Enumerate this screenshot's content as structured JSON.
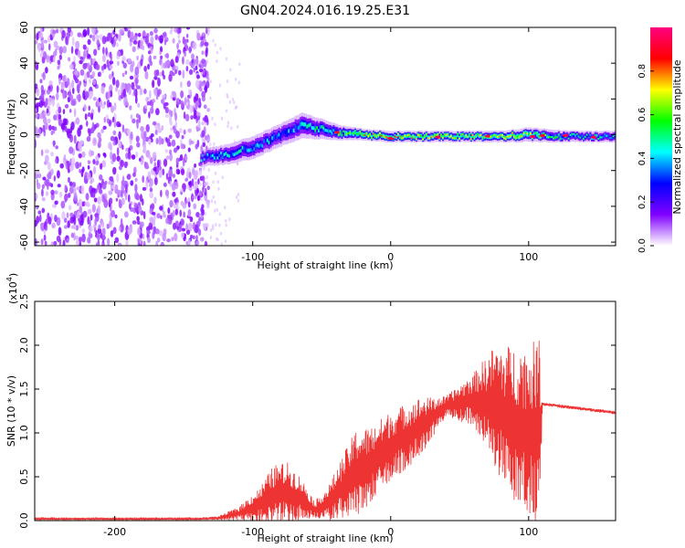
{
  "figure_title": "GN04.2024.016.19.25.E31",
  "chart_data": [
    {
      "type": "heatmap",
      "title": "GN04.2024.016.19.25.E31",
      "xlabel": "Height of straight line (km)",
      "ylabel": "Frequency (Hz)",
      "xlim": [
        -258,
        163
      ],
      "ylim": [
        -62,
        60
      ],
      "x_ticks": [
        -200,
        -100,
        0,
        100
      ],
      "x_tick_labels": [
        "-200",
        "-100",
        "0",
        "100"
      ],
      "y_ticks": [
        -60,
        -40,
        -20,
        0,
        20,
        40,
        60
      ],
      "y_tick_labels": [
        "-60",
        "-40",
        "-20",
        "0",
        "20",
        "40",
        "60"
      ],
      "colorbar": {
        "label": "Normalized spectral amplitude",
        "range": [
          0,
          1
        ],
        "ticks": [
          0,
          0.2,
          0.4,
          0.6,
          0.8
        ],
        "tick_labels": [
          "0.0",
          "0.2",
          "0.4",
          "0.6",
          "0.8"
        ],
        "colormap": [
          "#ffffff",
          "#8000ff",
          "#0000ff",
          "#00ffff",
          "#00ff00",
          "#ffff00",
          "#ff0000",
          "#ff0080"
        ]
      },
      "noise_region_x": [
        -258,
        -138
      ],
      "signal_track": [
        {
          "x": -138,
          "f_center": -13,
          "f_width": 6,
          "amp": 0.35
        },
        {
          "x": -120,
          "f_center": -11,
          "f_width": 7,
          "amp": 0.4
        },
        {
          "x": -100,
          "f_center": -7,
          "f_width": 8,
          "amp": 0.4
        },
        {
          "x": -80,
          "f_center": 0,
          "f_width": 8,
          "amp": 0.35
        },
        {
          "x": -65,
          "f_center": 5,
          "f_width": 9,
          "amp": 0.4
        },
        {
          "x": -50,
          "f_center": 3,
          "f_width": 7,
          "amp": 0.45
        },
        {
          "x": -35,
          "f_center": 1,
          "f_width": 5,
          "amp": 0.55
        },
        {
          "x": -20,
          "f_center": 0,
          "f_width": 4,
          "amp": 0.7
        },
        {
          "x": 0,
          "f_center": -1,
          "f_width": 4,
          "amp": 0.75
        },
        {
          "x": 20,
          "f_center": -1,
          "f_width": 4,
          "amp": 0.7
        },
        {
          "x": 50,
          "f_center": -1,
          "f_width": 4,
          "amp": 0.65
        },
        {
          "x": 80,
          "f_center": -1,
          "f_width": 4,
          "amp": 0.7
        },
        {
          "x": 100,
          "f_center": 0,
          "f_width": 5,
          "amp": 0.6
        },
        {
          "x": 130,
          "f_center": -1,
          "f_width": 4,
          "amp": 0.45
        },
        {
          "x": 163,
          "f_center": -1,
          "f_width": 4,
          "amp": 0.4
        }
      ]
    },
    {
      "type": "line",
      "xlabel": "Height of straight line (km)",
      "ylabel": "SNR (10 * v/v)",
      "y_multiplier_label": "(x10",
      "y_multiplier_exponent": "4",
      "y_multiplier_close": ")",
      "xlim": [
        -258,
        163
      ],
      "ylim": [
        0,
        2.5
      ],
      "x_ticks": [
        -200,
        -100,
        0,
        100
      ],
      "x_tick_labels": [
        "-200",
        "-100",
        "0",
        "100"
      ],
      "y_ticks": [
        0,
        0.5,
        1.0,
        1.5,
        2.0,
        2.5
      ],
      "y_tick_labels": [
        "0.0",
        "0.5",
        "1.0",
        "1.5",
        "2.0",
        "2.5"
      ],
      "grid": false,
      "series": [
        {
          "color": "#ee3333",
          "envelope": [
            {
              "x": -258,
              "base": 0.02,
              "amp": 0.01
            },
            {
              "x": -140,
              "base": 0.02,
              "amp": 0.01
            },
            {
              "x": -125,
              "base": 0.03,
              "amp": 0.02
            },
            {
              "x": -110,
              "base": 0.08,
              "amp": 0.08
            },
            {
              "x": -95,
              "base": 0.18,
              "amp": 0.2
            },
            {
              "x": -85,
              "base": 0.28,
              "amp": 0.35
            },
            {
              "x": -75,
              "base": 0.32,
              "amp": 0.35
            },
            {
              "x": -65,
              "base": 0.25,
              "amp": 0.25
            },
            {
              "x": -55,
              "base": 0.12,
              "amp": 0.1
            },
            {
              "x": -45,
              "base": 0.2,
              "amp": 0.2
            },
            {
              "x": -35,
              "base": 0.38,
              "amp": 0.35
            },
            {
              "x": -25,
              "base": 0.55,
              "amp": 0.5
            },
            {
              "x": -15,
              "base": 0.62,
              "amp": 0.45
            },
            {
              "x": 0,
              "base": 0.85,
              "amp": 0.4
            },
            {
              "x": 20,
              "base": 1.05,
              "amp": 0.35
            },
            {
              "x": 40,
              "base": 1.3,
              "amp": 0.12
            },
            {
              "x": 60,
              "base": 1.38,
              "amp": 0.3
            },
            {
              "x": 75,
              "base": 1.3,
              "amp": 0.7
            },
            {
              "x": 90,
              "base": 1.1,
              "amp": 0.9
            },
            {
              "x": 100,
              "base": 1.0,
              "amp": 1.0
            },
            {
              "x": 108,
              "base": 1.0,
              "amp": 1.1
            },
            {
              "x": 110,
              "base": 1.33,
              "amp": 0.02
            },
            {
              "x": 163,
              "base": 1.23,
              "amp": 0.02
            }
          ]
        }
      ]
    }
  ]
}
